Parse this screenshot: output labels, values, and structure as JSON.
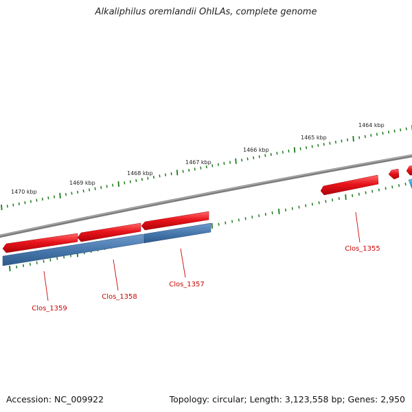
{
  "title": "Alkaliphilus oremlandii OhILAs, complete genome",
  "footer": {
    "accession": "Accession: NC_009922",
    "topology": "Topology: circular; Length: 3,123,558 bp; Genes: 2,950"
  },
  "kbp_labels": [
    "1464 kbp",
    "1465 kbp",
    "1466 kbp",
    "1467 kbp",
    "1468 kbp",
    "1469 kbp",
    "1470 kbp"
  ],
  "gene_labels": [
    "Clos_1355",
    "Clos_1357",
    "Clos_1358",
    "Clos_1359"
  ],
  "colors": {
    "backbone": "#7a7a7a",
    "gene_forward": "#e8141b",
    "gene_reverse_blue": "#4f7fb3",
    "gene_reverse_cyan": "#1aa6e0",
    "tick": "#1a7a1a",
    "gene_label": "#cc0000"
  }
}
